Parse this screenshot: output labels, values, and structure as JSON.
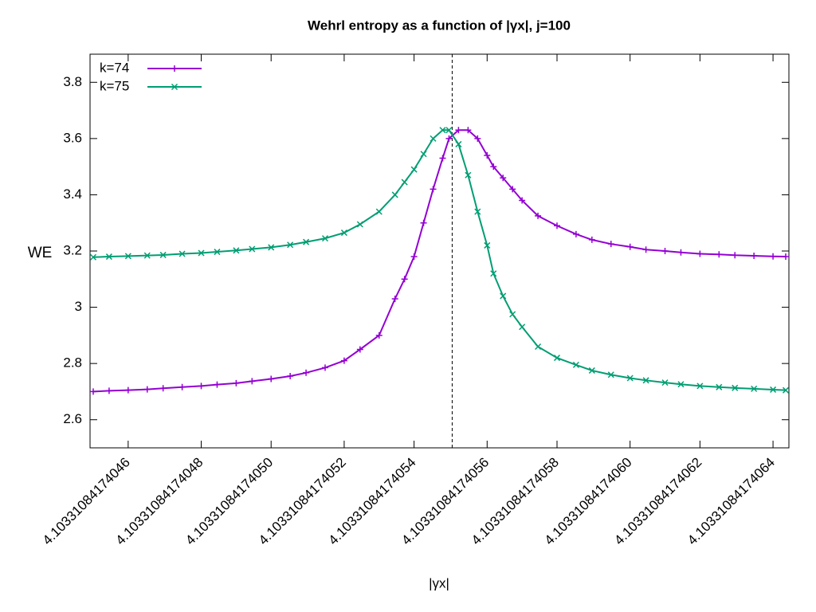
{
  "chart_data": {
    "type": "line",
    "title": "Wehrl entropy as a function of |γx|,  j=100",
    "xlabel": "|γx|",
    "ylabel": "WE",
    "x": [
      4.10331084174045,
      4.103310841740455,
      4.10331084174046,
      4.103310841740465,
      4.10331084174047,
      4.103310841740475,
      4.10331084174048,
      4.103310841740485,
      4.10331084174049,
      4.103310841740495,
      4.1033108417405,
      4.103310841740505,
      4.10331084174051,
      4.103310841740515,
      4.10331084174052,
      4.103310841740525,
      4.10331084174053,
      4.103310841740535,
      4.103310841740537,
      4.10331084174054,
      4.103310841740543,
      4.103310841740545,
      4.103310841740548,
      4.10331084174055,
      4.103310841740552,
      4.103310841740555,
      4.103310841740558,
      4.10331084174056,
      4.103310841740562,
      4.103310841740565,
      4.1033108417405675,
      4.10331084174057,
      4.103310841740575,
      4.10331084174058,
      4.103310841740585,
      4.10331084174059,
      4.103310841740595,
      4.1033108417406,
      4.103310841740605,
      4.10331084174061,
      4.103310841740615,
      4.10331084174062,
      4.103310841740625,
      4.10331084174063,
      4.103310841740635,
      4.10331084174064,
      4.103310841740644
    ],
    "series": [
      {
        "name": "k=74",
        "color": "#9400d3",
        "marker": "plus",
        "values": [
          2.7,
          2.703,
          2.705,
          2.708,
          2.712,
          2.716,
          2.72,
          2.725,
          2.73,
          2.737,
          2.745,
          2.755,
          2.767,
          2.785,
          2.81,
          2.85,
          2.9,
          3.03,
          3.1,
          3.18,
          3.3,
          3.42,
          3.53,
          3.6,
          3.63,
          3.63,
          3.6,
          3.54,
          3.5,
          3.46,
          3.42,
          3.38,
          3.325,
          3.29,
          3.26,
          3.24,
          3.225,
          3.215,
          3.205,
          3.2,
          3.195,
          3.19,
          3.188,
          3.185,
          3.183,
          3.181,
          3.18
        ]
      },
      {
        "name": "k=75",
        "color": "#009e73",
        "marker": "cross",
        "values": [
          3.178,
          3.18,
          3.182,
          3.184,
          3.186,
          3.19,
          3.193,
          3.197,
          3.202,
          3.207,
          3.213,
          3.222,
          3.232,
          3.245,
          3.265,
          3.295,
          3.34,
          3.4,
          3.445,
          3.49,
          3.545,
          3.6,
          3.63,
          3.63,
          3.58,
          3.47,
          3.34,
          3.22,
          3.12,
          3.04,
          2.975,
          2.93,
          2.86,
          2.82,
          2.795,
          2.775,
          2.76,
          2.748,
          2.74,
          2.732,
          2.726,
          2.72,
          2.716,
          2.713,
          2.71,
          2.707,
          2.705
        ]
      }
    ],
    "xlim": [
      4.103310841740449,
      4.103310841740645
    ],
    "ylim": [
      2.5,
      3.9
    ],
    "xticks": [
      4.10331084174046,
      4.10331084174048,
      {
        "value": 4.1033108417405,
        "label": "4.10331084174050"
      },
      4.10331084174052,
      4.10331084174054,
      4.10331084174056,
      4.10331084174058,
      {
        "value": 4.1033108417406,
        "label": "4.10331084174060"
      },
      4.10331084174062,
      4.10331084174064
    ],
    "yticks": [
      2.6,
      2.8,
      3,
      3.2,
      3.4,
      3.6,
      3.8
    ],
    "vline": 4.103310841740551,
    "grid": false,
    "legend": "top-left"
  }
}
